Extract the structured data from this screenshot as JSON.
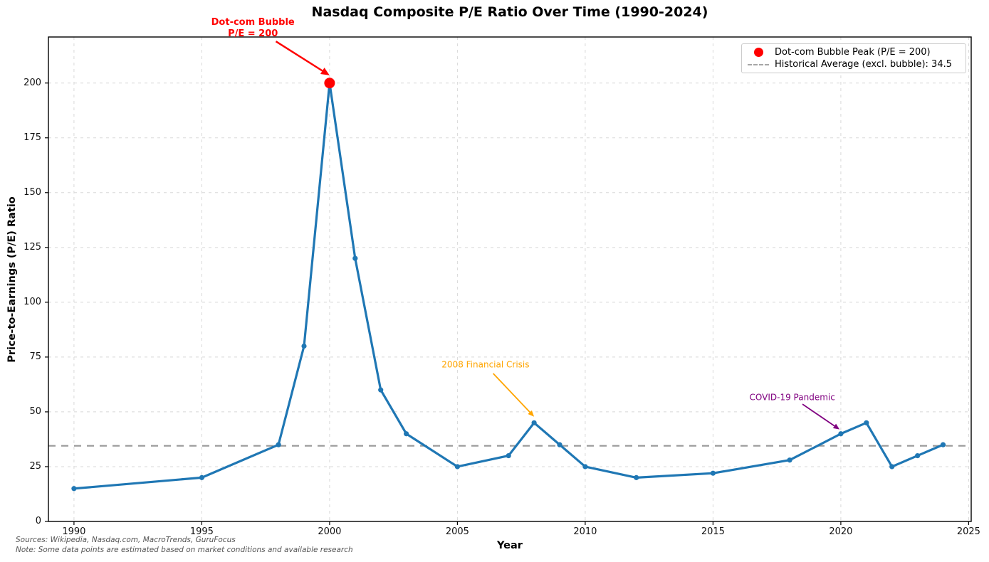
{
  "title": "Nasdaq Composite P/E Ratio Over Time (1990-2024)",
  "axes": {
    "xlabel": "Year",
    "ylabel": "Price-to-Earnings (P/E) Ratio"
  },
  "legend": {
    "position": "upper right",
    "items": [
      {
        "marker": "red-dot",
        "label": "Dot-com Bubble Peak (P/E = 200)"
      },
      {
        "marker": "gray-dashed-line",
        "label": "Historical Average (excl. bubble): 34.5"
      }
    ]
  },
  "footnotes": {
    "sources": "Sources: Wikipedia, Nasdaq.com, MacroTrends, GuruFocus",
    "note": "Note: Some data points are estimated based on market conditions and available research"
  },
  "colors": {
    "line": "#1f77b4",
    "peak": "#ff0000",
    "average": "#999999",
    "crisis_annotation": "#ffa500",
    "covid_annotation": "#800080",
    "grid": "#d8d8d8"
  },
  "chart_data": {
    "type": "line",
    "title": "Nasdaq Composite P/E Ratio Over Time (1990-2024)",
    "xlabel": "Year",
    "ylabel": "Price-to-Earnings (P/E) Ratio",
    "x": [
      1990,
      1995,
      1998,
      1999,
      2000,
      2001,
      2002,
      2003,
      2005,
      2007,
      2008,
      2009,
      2010,
      2012,
      2015,
      2018,
      2020,
      2021,
      2022,
      2023,
      2024
    ],
    "y": [
      15,
      20,
      35,
      80,
      200,
      120,
      60,
      40,
      25,
      30,
      45,
      35,
      25,
      20,
      22,
      28,
      40,
      45,
      25,
      30,
      35
    ],
    "line_color": "#1f77b4",
    "marker": "circle",
    "peak_point": {
      "x": 2000,
      "y": 200,
      "color": "#ff0000",
      "label": "Dot-com Bubble Peak (P/E = 200)"
    },
    "average_line": {
      "value": 34.5,
      "color": "#999999",
      "style": "dashed",
      "label": "Historical Average (excl. bubble): 34.5"
    },
    "x_ticks": [
      1990,
      1995,
      2000,
      2005,
      2010,
      2015,
      2020,
      2025
    ],
    "y_ticks": [
      0,
      25,
      50,
      75,
      100,
      125,
      150,
      175,
      200
    ],
    "xlim": [
      1989,
      2025.1
    ],
    "ylim": [
      0,
      221
    ],
    "grid": true,
    "legend_position": "upper right",
    "annotations": [
      {
        "lines": [
          "Dot-com Bubble",
          "P/E = 200"
        ],
        "color": "#ff0000",
        "bold": true,
        "text_at": [
          1997.0,
          225
        ],
        "arrow_from": [
          1997.9,
          219
        ],
        "arrow_to": [
          2000.0,
          203.5
        ],
        "arrow_width": 2.5
      },
      {
        "lines": [
          "2008 Financial Crisis"
        ],
        "color": "#ffa500",
        "bold": false,
        "text_at": [
          2006.1,
          71.5
        ],
        "arrow_from": [
          2006.4,
          67.5
        ],
        "arrow_to": [
          2008.0,
          47.8
        ],
        "arrow_width": 1.8
      },
      {
        "lines": [
          "COVID-19 Pandemic"
        ],
        "color": "#800080",
        "bold": false,
        "text_at": [
          2018.1,
          56.5
        ],
        "arrow_from": [
          2018.5,
          53.5
        ],
        "arrow_to": [
          2019.95,
          42.0
        ],
        "arrow_width": 1.8
      }
    ]
  }
}
